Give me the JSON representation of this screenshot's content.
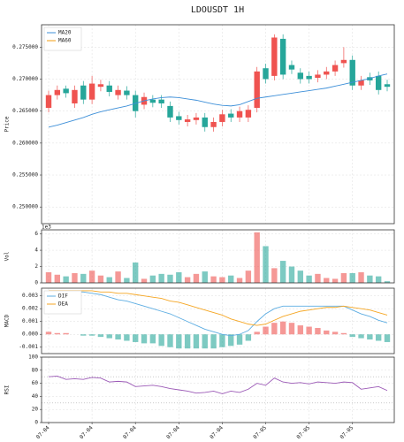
{
  "chart_data": [
    {
      "type": "candlestick",
      "title": "LDOUSDT  1H",
      "ylabel": "Price",
      "up_color": "#ef5350",
      "down_color": "#26a69a",
      "open": [
        0.2655,
        0.2675,
        0.2685,
        0.2662,
        0.269,
        0.2668,
        0.2688,
        0.269,
        0.2675,
        0.2682,
        0.2675,
        0.266,
        0.2668,
        0.2668,
        0.2658,
        0.2642,
        0.2633,
        0.2636,
        0.264,
        0.2625,
        0.2633,
        0.2646,
        0.264,
        0.264,
        0.2655,
        0.2717,
        0.2705,
        0.2763,
        0.2722,
        0.271,
        0.2705,
        0.2702,
        0.2707,
        0.2712,
        0.2725,
        0.273,
        0.269,
        0.2703,
        0.2705,
        0.2692
      ],
      "high": [
        0.2682,
        0.269,
        0.269,
        0.269,
        0.2697,
        0.2705,
        0.2699,
        0.2697,
        0.269,
        0.2689,
        0.2682,
        0.2679,
        0.2675,
        0.2675,
        0.2665,
        0.2649,
        0.2644,
        0.2647,
        0.2647,
        0.264,
        0.2652,
        0.2653,
        0.2657,
        0.2659,
        0.2719,
        0.2724,
        0.277,
        0.277,
        0.2729,
        0.2717,
        0.2712,
        0.2714,
        0.2719,
        0.2729,
        0.275,
        0.2737,
        0.2705,
        0.271,
        0.2712,
        0.2699
      ],
      "low": [
        0.2648,
        0.2668,
        0.2671,
        0.2655,
        0.2661,
        0.2661,
        0.2681,
        0.2673,
        0.2668,
        0.2668,
        0.264,
        0.2653,
        0.2656,
        0.2655,
        0.2633,
        0.2629,
        0.2626,
        0.2629,
        0.2618,
        0.2618,
        0.2626,
        0.2633,
        0.2633,
        0.2633,
        0.2648,
        0.2693,
        0.2698,
        0.27,
        0.2708,
        0.2693,
        0.2693,
        0.2695,
        0.27,
        0.2705,
        0.2718,
        0.2683,
        0.2683,
        0.2691,
        0.2676,
        0.2681
      ],
      "close": [
        0.2675,
        0.2683,
        0.2678,
        0.2683,
        0.2668,
        0.2693,
        0.2692,
        0.268,
        0.2683,
        0.2675,
        0.265,
        0.2672,
        0.2663,
        0.2662,
        0.264,
        0.2636,
        0.2637,
        0.264,
        0.2625,
        0.2633,
        0.2645,
        0.264,
        0.265,
        0.2652,
        0.2712,
        0.27,
        0.2765,
        0.2707,
        0.2715,
        0.27,
        0.27,
        0.2707,
        0.2712,
        0.2722,
        0.273,
        0.269,
        0.2698,
        0.2698,
        0.2683,
        0.2688
      ],
      "series": [
        {
          "name": "MA20",
          "color": "#3d8fd8",
          "values": [
            0.2625,
            0.2628,
            0.2632,
            0.2636,
            0.264,
            0.2645,
            0.2649,
            0.2652,
            0.2655,
            0.2658,
            0.2662,
            0.2666,
            0.2669,
            0.2671,
            0.2672,
            0.2671,
            0.2669,
            0.2667,
            0.2664,
            0.2661,
            0.2659,
            0.2658,
            0.266,
            0.2665,
            0.267,
            0.2672,
            0.2674,
            0.2676,
            0.2678,
            0.268,
            0.2682,
            0.2684,
            0.2686,
            0.2689,
            0.2692,
            0.2695,
            0.2698,
            0.2701,
            0.2705,
            0.2708
          ]
        },
        {
          "name": "MA60",
          "color": "#f39c12",
          "values": [
            null,
            null,
            null,
            null,
            null,
            null,
            null,
            null,
            null,
            null,
            null,
            null,
            null,
            null,
            null,
            null,
            null,
            null,
            null,
            null,
            null,
            null,
            null,
            null,
            null,
            null,
            null,
            null,
            null,
            null,
            null,
            null,
            null,
            null,
            null,
            null,
            null,
            null,
            null,
            null
          ]
        }
      ],
      "ylim": [
        0.2474,
        0.2785
      ],
      "yticks": [
        {
          "value": 0.25,
          "label": "0.250000"
        },
        {
          "value": 0.255,
          "label": "0.255000"
        },
        {
          "value": 0.26,
          "label": "0.260000"
        },
        {
          "value": 0.265,
          "label": "0.265000"
        },
        {
          "value": 0.27,
          "label": "0.270000"
        },
        {
          "value": 0.275,
          "label": "0.275000"
        }
      ],
      "grid": true,
      "legend": "upper left"
    },
    {
      "type": "bar",
      "ylabel": "Vol",
      "offset_label": "1e3",
      "values": [
        1.3,
        1.0,
        0.8,
        1.2,
        1.1,
        1.5,
        0.9,
        0.7,
        1.4,
        0.6,
        2.5,
        0.5,
        0.9,
        1.1,
        1.0,
        1.3,
        0.7,
        1.1,
        1.4,
        0.8,
        0.7,
        0.9,
        0.6,
        1.5,
        6.2,
        4.5,
        1.8,
        2.7,
        2.0,
        1.5,
        0.9,
        1.1,
        0.6,
        0.5,
        1.2,
        1.2,
        1.3,
        0.9,
        0.8,
        0.2
      ],
      "ylim": [
        0,
        6.5
      ],
      "yticks": [
        0,
        2,
        4,
        6
      ],
      "grid": true
    },
    {
      "type": "macd",
      "ylabel": "MACD",
      "histogram": [
        0.0002,
        0.0001,
        0.0001,
        0.0,
        -0.0001,
        -0.0001,
        -0.0002,
        -0.0003,
        -0.0004,
        -0.0005,
        -0.0006,
        -0.0007,
        -0.0007,
        -0.0009,
        -0.001,
        -0.0011,
        -0.0011,
        -0.0011,
        -0.0011,
        -0.0011,
        -0.001,
        -0.0009,
        -0.0008,
        -0.0005,
        0.0002,
        0.0006,
        0.0009,
        0.001,
        0.0009,
        0.0007,
        0.0006,
        0.0005,
        0.0003,
        0.0002,
        0.0001,
        -0.0002,
        -0.0003,
        -0.0004,
        -0.0005,
        -0.0006
      ],
      "series": [
        {
          "name": "DIF",
          "color": "#5dade2",
          "values": [
            0.0034,
            0.0034,
            0.0033,
            0.0033,
            0.0033,
            0.0032,
            0.0031,
            0.0029,
            0.0027,
            0.0026,
            0.0024,
            0.0022,
            0.002,
            0.0018,
            0.0016,
            0.0013,
            0.001,
            0.0007,
            0.0004,
            0.0002,
            0.0,
            -0.0001,
            0.0,
            0.0003,
            0.001,
            0.0016,
            0.002,
            0.0022,
            0.0022,
            0.0022,
            0.0022,
            0.0022,
            0.0022,
            0.0022,
            0.0022,
            0.0019,
            0.0016,
            0.0014,
            0.0011,
            0.0009
          ]
        },
        {
          "name": "DEA",
          "color": "#f5a623",
          "values": [
            0.0034,
            0.0034,
            0.0034,
            0.0034,
            0.0034,
            0.0034,
            0.0033,
            0.0033,
            0.0032,
            0.0032,
            0.0031,
            0.003,
            0.0029,
            0.0028,
            0.0026,
            0.0025,
            0.0023,
            0.0021,
            0.0019,
            0.0017,
            0.0015,
            0.0012,
            0.001,
            0.0008,
            0.0007,
            0.0008,
            0.0011,
            0.0014,
            0.0016,
            0.0018,
            0.0019,
            0.002,
            0.0021,
            0.0021,
            0.0022,
            0.0021,
            0.002,
            0.0019,
            0.0017,
            0.0015
          ]
        }
      ],
      "ylim": [
        -0.0015,
        0.0036
      ],
      "yticks": [
        {
          "value": -0.001,
          "label": "-0.001"
        },
        {
          "value": 0,
          "label": "0.000"
        },
        {
          "value": 0.001,
          "label": "0.001"
        },
        {
          "value": 0.002,
          "label": "0.002"
        },
        {
          "value": 0.003,
          "label": "0.003"
        }
      ],
      "grid": true,
      "legend": "upper left"
    },
    {
      "type": "line",
      "ylabel": "RSI",
      "color": "#9b59b6",
      "categories": [
        "07-04",
        null,
        null,
        null,
        null,
        "07-04",
        null,
        null,
        null,
        null,
        "07-04",
        null,
        null,
        null,
        null,
        "07-04",
        null,
        null,
        null,
        null,
        "07-04",
        null,
        null,
        null,
        null,
        "07-05",
        null,
        null,
        null,
        null,
        "07-05",
        null,
        null,
        null,
        null,
        "07-05",
        null,
        null,
        null,
        null
      ],
      "values": [
        70,
        71,
        66,
        67,
        66,
        69,
        68,
        62,
        63,
        62,
        55,
        56,
        57,
        55,
        52,
        50,
        48,
        45,
        46,
        48,
        44,
        48,
        46,
        51,
        60,
        57,
        68,
        62,
        60,
        61,
        59,
        62,
        61,
        60,
        62,
        61,
        51,
        53,
        55,
        49
      ],
      "hlines": [
        70,
        30
      ],
      "ylim": [
        0,
        100
      ],
      "yticks": [
        0,
        20,
        40,
        60,
        80,
        100
      ],
      "grid": true
    }
  ]
}
